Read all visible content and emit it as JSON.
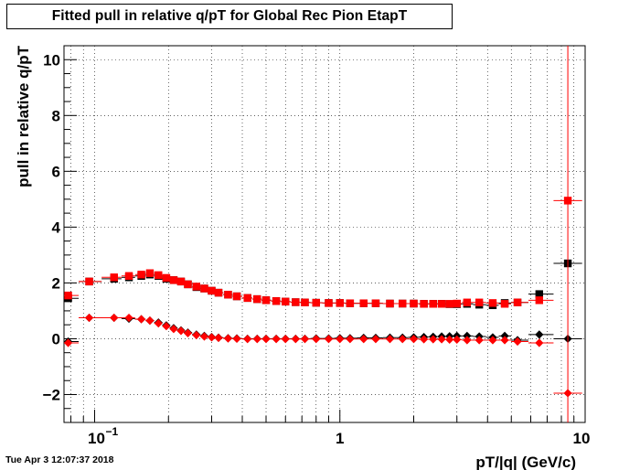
{
  "title": "Fitted pull in relative q/pT for Global Rec Pion EtapT",
  "timestamp": "Tue Apr  3 12:07:37 2018",
  "chart_data": {
    "type": "scatter",
    "title": "Fitted pull in relative q/pT for Global Rec Pion EtapT",
    "xlabel": "pT/|q| (GeV/c)",
    "ylabel": "pull in relative q/pT",
    "xscale": "log",
    "xlim": [
      0.075,
      10
    ],
    "ylim": [
      -3,
      10.5
    ],
    "x_tick_labels": [
      "10^-1",
      "1",
      "10"
    ],
    "y_tick_labels": [
      "-2",
      "0",
      "2",
      "4",
      "6",
      "8",
      "10"
    ],
    "grid": true,
    "series": [
      {
        "marker": "square",
        "color": "#000000",
        "points": [
          [
            0.078,
            1.45
          ],
          [
            0.095,
            2.05
          ],
          [
            0.12,
            2.15
          ],
          [
            0.138,
            2.2
          ],
          [
            0.155,
            2.25
          ],
          [
            0.168,
            2.3
          ],
          [
            0.182,
            2.25
          ],
          [
            0.196,
            2.15
          ],
          [
            0.21,
            2.1
          ],
          [
            0.225,
            2.05
          ],
          [
            0.24,
            1.95
          ],
          [
            0.26,
            1.85
          ],
          [
            0.28,
            1.8
          ],
          [
            0.3,
            1.72
          ],
          [
            0.32,
            1.65
          ],
          [
            0.35,
            1.58
          ],
          [
            0.38,
            1.52
          ],
          [
            0.42,
            1.46
          ],
          [
            0.46,
            1.42
          ],
          [
            0.5,
            1.38
          ],
          [
            0.55,
            1.35
          ],
          [
            0.6,
            1.33
          ],
          [
            0.66,
            1.31
          ],
          [
            0.72,
            1.3
          ],
          [
            0.8,
            1.29
          ],
          [
            0.9,
            1.28
          ],
          [
            1.0,
            1.28
          ],
          [
            1.1,
            1.27
          ],
          [
            1.25,
            1.27
          ],
          [
            1.4,
            1.27
          ],
          [
            1.6,
            1.26
          ],
          [
            1.8,
            1.26
          ],
          [
            2.0,
            1.26
          ],
          [
            2.2,
            1.25
          ],
          [
            2.4,
            1.25
          ],
          [
            2.6,
            1.25
          ],
          [
            2.8,
            1.24
          ],
          [
            3.0,
            1.24
          ],
          [
            3.3,
            1.25
          ],
          [
            3.7,
            1.22
          ],
          [
            4.2,
            1.2
          ],
          [
            4.7,
            1.28
          ],
          [
            5.3,
            1.3
          ],
          [
            6.5,
            1.6
          ],
          [
            8.5,
            2.7
          ]
        ]
      },
      {
        "marker": "square",
        "color": "#ff0000",
        "points": [
          [
            0.078,
            1.55
          ],
          [
            0.095,
            2.05
          ],
          [
            0.12,
            2.2
          ],
          [
            0.138,
            2.25
          ],
          [
            0.155,
            2.3
          ],
          [
            0.168,
            2.35
          ],
          [
            0.182,
            2.28
          ],
          [
            0.196,
            2.18
          ],
          [
            0.21,
            2.1
          ],
          [
            0.225,
            2.05
          ],
          [
            0.24,
            1.95
          ],
          [
            0.26,
            1.87
          ],
          [
            0.28,
            1.8
          ],
          [
            0.3,
            1.72
          ],
          [
            0.32,
            1.65
          ],
          [
            0.35,
            1.58
          ],
          [
            0.38,
            1.52
          ],
          [
            0.42,
            1.46
          ],
          [
            0.46,
            1.42
          ],
          [
            0.5,
            1.38
          ],
          [
            0.55,
            1.35
          ],
          [
            0.6,
            1.33
          ],
          [
            0.66,
            1.31
          ],
          [
            0.72,
            1.3
          ],
          [
            0.8,
            1.29
          ],
          [
            0.9,
            1.28
          ],
          [
            1.0,
            1.28
          ],
          [
            1.1,
            1.27
          ],
          [
            1.25,
            1.27
          ],
          [
            1.4,
            1.27
          ],
          [
            1.6,
            1.26
          ],
          [
            1.8,
            1.26
          ],
          [
            2.0,
            1.26
          ],
          [
            2.2,
            1.25
          ],
          [
            2.4,
            1.25
          ],
          [
            2.6,
            1.25
          ],
          [
            2.8,
            1.25
          ],
          [
            3.0,
            1.26
          ],
          [
            3.3,
            1.3
          ],
          [
            3.7,
            1.3
          ],
          [
            4.2,
            1.28
          ],
          [
            4.7,
            1.25
          ],
          [
            5.3,
            1.3
          ],
          [
            6.5,
            1.38
          ],
          [
            8.5,
            4.95
          ]
        ]
      },
      {
        "marker": "diamond",
        "color": "#000000",
        "points": [
          [
            0.078,
            -0.1
          ],
          [
            0.095,
            0.75
          ],
          [
            0.12,
            0.75
          ],
          [
            0.138,
            0.72
          ],
          [
            0.155,
            0.7
          ],
          [
            0.168,
            0.65
          ],
          [
            0.182,
            0.58
          ],
          [
            0.196,
            0.48
          ],
          [
            0.21,
            0.38
          ],
          [
            0.225,
            0.3
          ],
          [
            0.24,
            0.22
          ],
          [
            0.26,
            0.15
          ],
          [
            0.28,
            0.1
          ],
          [
            0.3,
            0.06
          ],
          [
            0.32,
            0.04
          ],
          [
            0.35,
            0.02
          ],
          [
            0.38,
            0.01
          ],
          [
            0.42,
            0.0
          ],
          [
            0.46,
            0.0
          ],
          [
            0.5,
            0.0
          ],
          [
            0.55,
            0.0
          ],
          [
            0.6,
            0.0
          ],
          [
            0.66,
            0.0
          ],
          [
            0.72,
            0.0
          ],
          [
            0.8,
            0.01
          ],
          [
            0.9,
            0.01
          ],
          [
            1.0,
            0.02
          ],
          [
            1.1,
            0.02
          ],
          [
            1.25,
            0.03
          ],
          [
            1.4,
            0.03
          ],
          [
            1.6,
            0.04
          ],
          [
            1.8,
            0.04
          ],
          [
            2.0,
            0.05
          ],
          [
            2.2,
            0.06
          ],
          [
            2.4,
            0.07
          ],
          [
            2.6,
            0.08
          ],
          [
            2.8,
            0.09
          ],
          [
            3.0,
            0.1
          ],
          [
            3.3,
            0.1
          ],
          [
            3.7,
            0.08
          ],
          [
            4.2,
            0.05
          ],
          [
            4.7,
            0.1
          ],
          [
            5.3,
            -0.05
          ],
          [
            6.5,
            0.15
          ],
          [
            8.5,
            0.0
          ]
        ]
      },
      {
        "marker": "diamond",
        "color": "#ff0000",
        "points": [
          [
            0.078,
            -0.15
          ],
          [
            0.095,
            0.75
          ],
          [
            0.12,
            0.75
          ],
          [
            0.138,
            0.75
          ],
          [
            0.155,
            0.7
          ],
          [
            0.168,
            0.65
          ],
          [
            0.182,
            0.55
          ],
          [
            0.196,
            0.45
          ],
          [
            0.21,
            0.35
          ],
          [
            0.225,
            0.28
          ],
          [
            0.24,
            0.2
          ],
          [
            0.26,
            0.13
          ],
          [
            0.28,
            0.08
          ],
          [
            0.3,
            0.05
          ],
          [
            0.32,
            0.03
          ],
          [
            0.35,
            0.01
          ],
          [
            0.38,
            0.0
          ],
          [
            0.42,
            -0.01
          ],
          [
            0.46,
            -0.01
          ],
          [
            0.5,
            -0.01
          ],
          [
            0.55,
            -0.01
          ],
          [
            0.6,
            -0.01
          ],
          [
            0.66,
            -0.01
          ],
          [
            0.72,
            -0.01
          ],
          [
            0.8,
            -0.01
          ],
          [
            0.9,
            -0.01
          ],
          [
            1.0,
            -0.01
          ],
          [
            1.1,
            -0.01
          ],
          [
            1.25,
            -0.01
          ],
          [
            1.4,
            -0.01
          ],
          [
            1.6,
            -0.01
          ],
          [
            1.8,
            -0.01
          ],
          [
            2.0,
            -0.01
          ],
          [
            2.2,
            -0.02
          ],
          [
            2.4,
            -0.02
          ],
          [
            2.6,
            -0.02
          ],
          [
            2.8,
            -0.03
          ],
          [
            3.0,
            -0.03
          ],
          [
            3.3,
            -0.05
          ],
          [
            3.7,
            -0.05
          ],
          [
            4.2,
            -0.05
          ],
          [
            4.7,
            -0.05
          ],
          [
            5.3,
            -0.1
          ],
          [
            6.5,
            -0.15
          ],
          [
            8.5,
            -1.95
          ]
        ]
      }
    ]
  }
}
